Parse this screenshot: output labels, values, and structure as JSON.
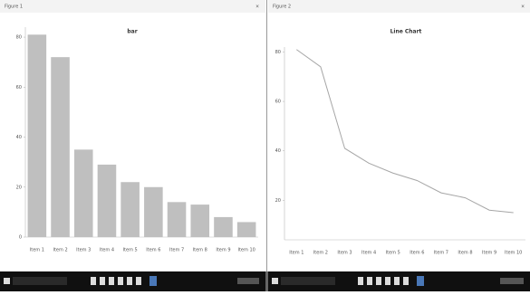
{
  "windows": [
    {
      "title": "Figure 1"
    },
    {
      "title": "Figure 2"
    }
  ],
  "chart_data": [
    {
      "type": "bar",
      "title": "bar",
      "categories": [
        "Item 1",
        "Item 2",
        "Item 3",
        "Item 4",
        "Item 5",
        "Item 6",
        "Item 7",
        "Item 8",
        "Item 9",
        "Item 10"
      ],
      "values": [
        81,
        72,
        35,
        29,
        22,
        20,
        14,
        13,
        8,
        6
      ],
      "color": "#bfbfbf",
      "ylim": [
        0,
        84
      ],
      "yticks": [
        0,
        20,
        40,
        60,
        80
      ]
    },
    {
      "type": "line",
      "title": "Line Chart",
      "categories": [
        "Item 1",
        "Item 2",
        "Item 3",
        "Item 4",
        "Item 5",
        "Item 6",
        "Item 7",
        "Item 8",
        "Item 9",
        "Item 10"
      ],
      "values": [
        81,
        74,
        41,
        35,
        31,
        28,
        23,
        21,
        16,
        15
      ],
      "color": "#a6a6a6",
      "ylim": [
        4,
        82
      ],
      "yticks": [
        20,
        40,
        60,
        80
      ]
    }
  ]
}
